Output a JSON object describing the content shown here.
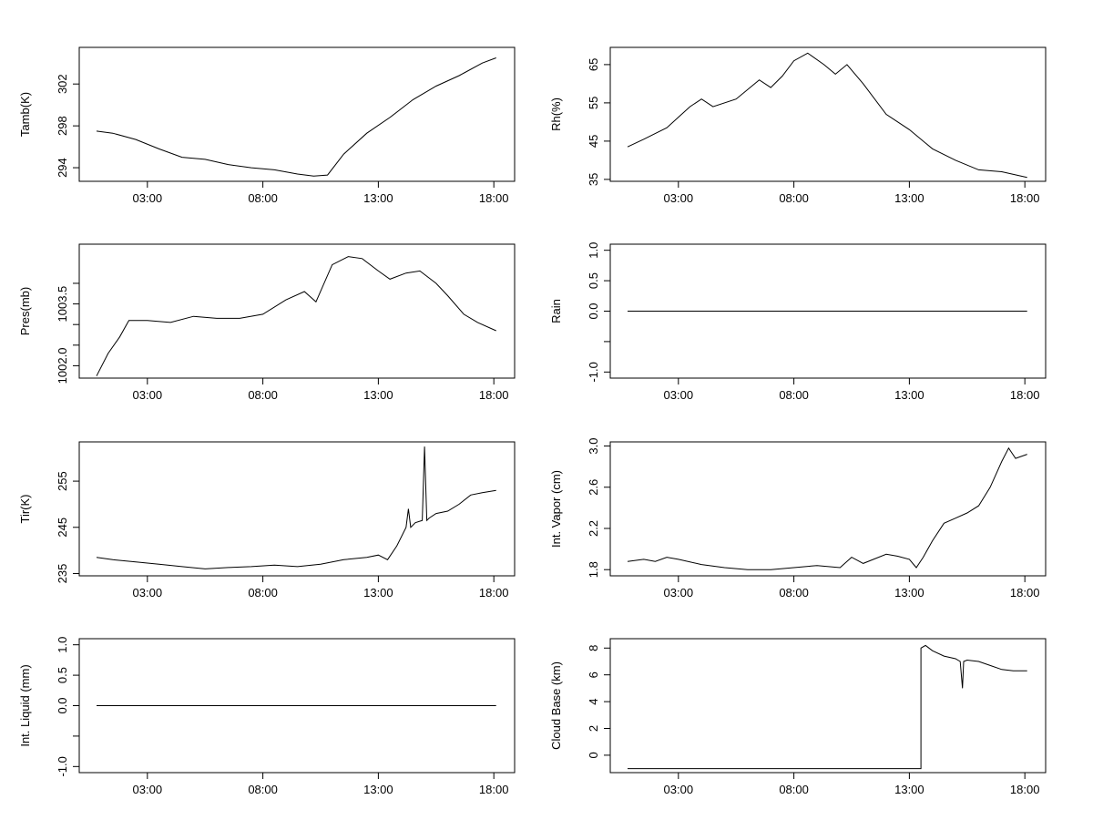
{
  "x_ticks": [
    "03:00",
    "08:00",
    "13:00",
    "18:00"
  ],
  "chart_data": [
    {
      "type": "line",
      "ylabel": "Tamb(K)",
      "yticks": [
        294,
        298,
        302
      ],
      "ylim": [
        292.7,
        305.5
      ],
      "x": [
        0.8,
        1.5,
        2.5,
        3.5,
        4.5,
        5.5,
        6.5,
        7.5,
        8.5,
        9.5,
        10.2,
        10.8,
        11.5,
        12.5,
        13.5,
        14.5,
        15.5,
        16.5,
        17.5,
        18.1
      ],
      "values": [
        297.5,
        297.3,
        296.7,
        295.8,
        295.0,
        294.8,
        294.3,
        294.0,
        293.8,
        293.4,
        293.2,
        293.3,
        295.3,
        297.3,
        298.8,
        300.5,
        301.8,
        302.8,
        304.0,
        304.5
      ]
    },
    {
      "type": "line",
      "ylabel": "Rh(%)",
      "yticks": [
        35,
        45,
        55,
        65
      ],
      "ylim": [
        34.5,
        69.5
      ],
      "x": [
        0.8,
        1.5,
        2.5,
        3.5,
        4.0,
        4.5,
        5.5,
        6.5,
        7.0,
        7.5,
        8.0,
        8.6,
        9.3,
        9.8,
        10.3,
        11.0,
        12.0,
        13.0,
        14.0,
        15.0,
        16.0,
        17.0,
        18.1
      ],
      "values": [
        43.5,
        45.5,
        48.5,
        54.0,
        56.0,
        54.0,
        56.0,
        61.0,
        59.0,
        62.0,
        66.0,
        68.0,
        65.0,
        62.5,
        65.0,
        60.0,
        52.0,
        48.0,
        43.0,
        40.0,
        37.5,
        37.0,
        35.5
      ]
    },
    {
      "type": "line",
      "ylabel": "Pres(mb)",
      "yticks": [
        1002.0,
        1003.5
      ],
      "ytick_labels": [
        "1002.0",
        "1003.5"
      ],
      "minor_yticks": [
        1002.5,
        1003.0,
        1004.0
      ],
      "ylim": [
        1001.7,
        1004.95
      ],
      "x": [
        0.8,
        1.3,
        1.8,
        2.2,
        3.0,
        4.0,
        5.0,
        6.0,
        7.0,
        8.0,
        9.0,
        9.8,
        10.3,
        11.0,
        11.7,
        12.3,
        13.0,
        13.5,
        14.2,
        14.8,
        15.5,
        16.0,
        16.7,
        17.3,
        18.1
      ],
      "values": [
        1001.75,
        1002.3,
        1002.7,
        1003.1,
        1003.1,
        1003.05,
        1003.2,
        1003.15,
        1003.15,
        1003.25,
        1003.6,
        1003.8,
        1003.55,
        1004.45,
        1004.65,
        1004.6,
        1004.3,
        1004.1,
        1004.25,
        1004.3,
        1004.0,
        1003.7,
        1003.25,
        1003.05,
        1002.85
      ]
    },
    {
      "type": "line",
      "ylabel": "Rain",
      "yticks": [
        -1.0,
        0.0,
        0.5,
        1.0
      ],
      "ytick_labels": [
        "-1.0",
        "0.0",
        "0.5",
        "1.0"
      ],
      "minor_yticks": [
        -0.5
      ],
      "ylim": [
        -1.1,
        1.1
      ],
      "x": [
        0.8,
        18.1
      ],
      "values": [
        0,
        0
      ]
    },
    {
      "type": "line",
      "ylabel": "Tir(K)",
      "yticks": [
        235,
        245,
        255
      ],
      "ylim": [
        234.5,
        263.5
      ],
      "x": [
        0.8,
        1.5,
        2.5,
        3.5,
        4.5,
        5.5,
        6.5,
        7.5,
        8.5,
        9.5,
        10.5,
        11.5,
        12.5,
        13.0,
        13.4,
        13.8,
        14.2,
        14.3,
        14.4,
        14.6,
        14.9,
        15.0,
        15.1,
        15.2,
        15.5,
        16.0,
        16.5,
        17.0,
        17.5,
        18.1
      ],
      "values": [
        238.5,
        238.0,
        237.5,
        237.0,
        236.5,
        236.0,
        236.3,
        236.5,
        236.8,
        236.5,
        237.0,
        238.0,
        238.5,
        239.0,
        238.0,
        241.0,
        245.0,
        249.0,
        245.0,
        246.0,
        246.5,
        262.5,
        246.5,
        247.0,
        248.0,
        248.5,
        250.0,
        252.0,
        252.5,
        253.0
      ]
    },
    {
      "type": "line",
      "ylabel": "Int. Vapor (cm)",
      "yticks": [
        1.8,
        2.2,
        2.6,
        3.0
      ],
      "ytick_labels": [
        "1.8",
        "2.2",
        "2.6",
        "3.0"
      ],
      "ylim": [
        1.74,
        3.04
      ],
      "x": [
        0.8,
        1.5,
        2.0,
        2.5,
        3.0,
        4.0,
        5.0,
        6.0,
        7.0,
        8.0,
        9.0,
        10.0,
        10.5,
        11.0,
        12.0,
        12.5,
        13.0,
        13.3,
        13.6,
        14.0,
        14.5,
        15.0,
        15.5,
        16.0,
        16.5,
        17.0,
        17.3,
        17.6,
        18.1
      ],
      "values": [
        1.88,
        1.9,
        1.88,
        1.92,
        1.9,
        1.85,
        1.82,
        1.8,
        1.8,
        1.82,
        1.84,
        1.82,
        1.92,
        1.86,
        1.95,
        1.93,
        1.9,
        1.82,
        1.92,
        2.08,
        2.25,
        2.3,
        2.35,
        2.42,
        2.6,
        2.85,
        2.98,
        2.88,
        2.92
      ]
    },
    {
      "type": "line",
      "ylabel": "Int. Liquid (mm)",
      "yticks": [
        -1.0,
        0.0,
        0.5,
        1.0
      ],
      "ytick_labels": [
        "-1.0",
        "0.0",
        "0.5",
        "1.0"
      ],
      "minor_yticks": [
        -0.5
      ],
      "ylim": [
        -1.1,
        1.1
      ],
      "x": [
        0.8,
        18.1
      ],
      "values": [
        0,
        0
      ]
    },
    {
      "type": "line",
      "ylabel": "Cloud Base (km)",
      "yticks": [
        0,
        2,
        4,
        6,
        8
      ],
      "ylim": [
        -1.3,
        8.7
      ],
      "x": [
        0.8,
        13.5,
        13.5,
        13.7,
        14.0,
        14.5,
        15.0,
        15.2,
        15.3,
        15.35,
        15.5,
        16.0,
        16.5,
        17.0,
        17.5,
        18.1
      ],
      "values": [
        -1.0,
        -1.0,
        8.0,
        8.2,
        7.8,
        7.4,
        7.2,
        7.0,
        5.0,
        7.0,
        7.1,
        7.0,
        6.7,
        6.4,
        6.3,
        6.3
      ]
    }
  ]
}
